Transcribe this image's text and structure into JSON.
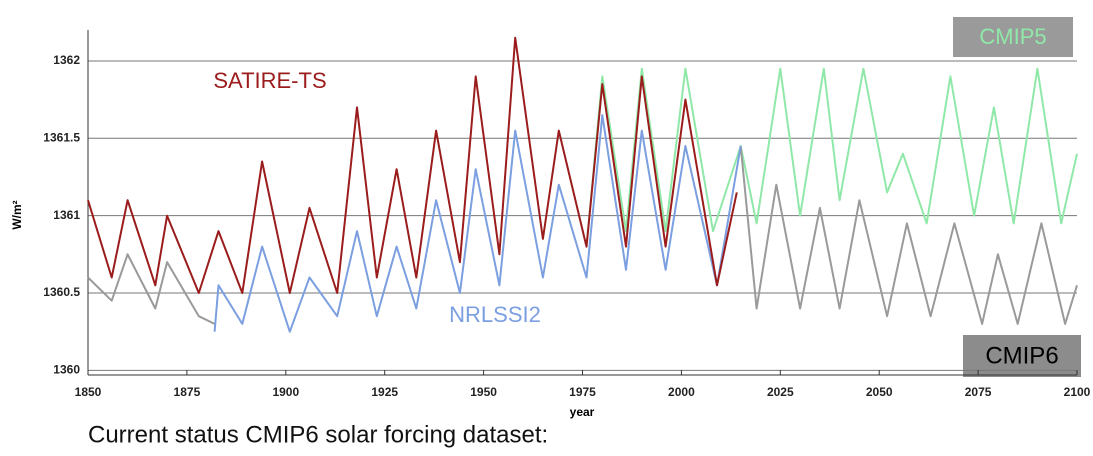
{
  "chart_data": {
    "type": "line",
    "caption": "Current status CMIP6 solar forcing dataset:",
    "xlabel": "year",
    "ylabel": "W/m²",
    "xlim": [
      1850,
      2100
    ],
    "xticks": [
      1850,
      1875,
      1900,
      1925,
      1950,
      1975,
      2000,
      2025,
      2050,
      2075,
      2100
    ],
    "ylim": [
      1359.97,
      1362.2
    ],
    "yticks": [
      1360,
      1360.5,
      1361,
      1361.5,
      1362
    ],
    "grid": true,
    "series": [
      {
        "name": "SATIRE-TS",
        "color": "#9b1c1c",
        "x": [
          1850,
          1856,
          1860,
          1867,
          1870,
          1878,
          1883,
          1889,
          1894,
          1901,
          1906,
          1913,
          1918,
          1923,
          1928,
          1933,
          1938,
          1944,
          1948,
          1954,
          1958,
          1965,
          1969,
          1976,
          1980,
          1986,
          1990,
          1996,
          2001,
          2009,
          2014
        ],
        "values": [
          1361.1,
          1360.6,
          1361.1,
          1360.55,
          1361.0,
          1360.5,
          1360.9,
          1360.5,
          1361.35,
          1360.5,
          1361.05,
          1360.5,
          1361.7,
          1360.6,
          1361.3,
          1360.6,
          1361.55,
          1360.7,
          1361.9,
          1360.75,
          1362.15,
          1360.85,
          1361.55,
          1360.8,
          1361.85,
          1360.8,
          1361.9,
          1360.8,
          1361.75,
          1360.55,
          1361.15
        ]
      },
      {
        "name": "NRLSSI2",
        "color": "#7b9fe0",
        "x": [
          1882,
          1883,
          1889,
          1894,
          1901,
          1906,
          1913,
          1918,
          1923,
          1928,
          1933,
          1938,
          1944,
          1948,
          1954,
          1958,
          1965,
          1969,
          1976,
          1980,
          1986,
          1990,
          1996,
          2001,
          2009,
          2015
        ],
        "values": [
          1360.25,
          1360.55,
          1360.3,
          1360.8,
          1360.25,
          1360.6,
          1360.35,
          1360.9,
          1360.35,
          1360.8,
          1360.4,
          1361.1,
          1360.5,
          1361.3,
          1360.55,
          1361.55,
          1360.6,
          1361.2,
          1360.6,
          1361.65,
          1360.65,
          1361.55,
          1360.65,
          1361.45,
          1360.55,
          1361.45
        ]
      },
      {
        "name": "CMIP5",
        "color": "#90e8a8",
        "x": [
          1976,
          1980,
          1986,
          1990,
          1996,
          2001,
          2008,
          2015,
          2019,
          2025,
          2030,
          2036,
          2040,
          2046,
          2052,
          2056,
          2062,
          2068,
          2074,
          2079,
          2084,
          2090,
          2096,
          2100
        ],
        "values": [
          1360.8,
          1361.9,
          1360.9,
          1361.95,
          1360.9,
          1361.95,
          1360.9,
          1361.45,
          1360.95,
          1361.95,
          1361.0,
          1361.95,
          1361.1,
          1361.95,
          1361.15,
          1361.4,
          1360.95,
          1361.9,
          1361.0,
          1361.7,
          1360.95,
          1361.95,
          1360.95,
          1361.4
        ]
      },
      {
        "name": "CMIP6",
        "color": "#9a9a9a",
        "x": [
          1850,
          1856,
          1860,
          1867,
          1870,
          1878,
          1882,
          1950,
          2015,
          2019,
          2024,
          2030,
          2035,
          2040,
          2045,
          2052,
          2057,
          2063,
          2069,
          2076,
          2080,
          2085,
          2091,
          2097,
          2100
        ],
        "values": [
          1360.6,
          1360.45,
          1360.75,
          1360.4,
          1360.7,
          1360.35,
          1360.3,
          null,
          1361.45,
          1360.4,
          1361.2,
          1360.4,
          1361.05,
          1360.4,
          1361.1,
          1360.35,
          1360.95,
          1360.35,
          1360.95,
          1360.3,
          1360.75,
          1360.3,
          1360.95,
          1360.3,
          1360.55
        ]
      }
    ]
  }
}
